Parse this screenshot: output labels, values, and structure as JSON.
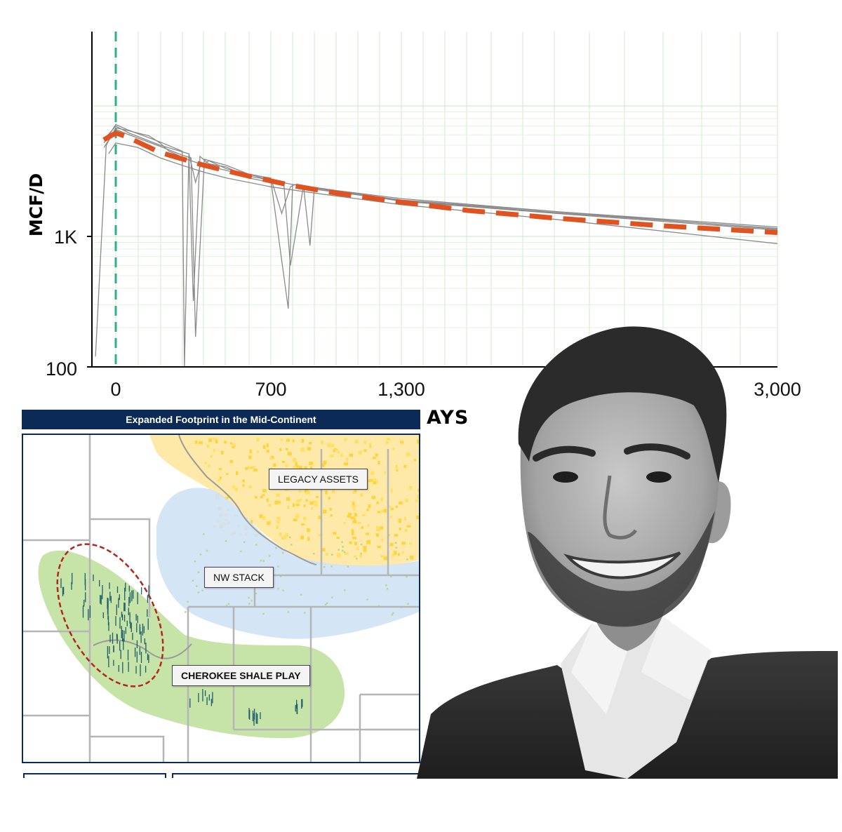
{
  "chart_data": {
    "type": "line",
    "ylabel": "MCF/D",
    "xlabel_visible_fragment": "AYS",
    "y_scale": "log",
    "y_ticks": [
      "100",
      "1K"
    ],
    "x_ticks": [
      "0",
      "700",
      "1,300",
      "3,000"
    ],
    "xlim": [
      -100,
      3000
    ],
    "ylim": [
      100,
      10000
    ],
    "reference_line": {
      "x": 0,
      "style": "dashed",
      "color": "#2bb08a"
    },
    "type_curve": {
      "style": "dashed",
      "color": "#e0521f",
      "x": [
        -50,
        0,
        50,
        200,
        400,
        600,
        800,
        1000,
        1300,
        1600,
        2000,
        2500,
        3000
      ],
      "y": [
        5500,
        6200,
        5800,
        4400,
        3500,
        2900,
        2450,
        2150,
        1830,
        1580,
        1380,
        1200,
        1070
      ]
    },
    "well_series": [
      {
        "x": [
          -85,
          -40,
          0,
          50,
          150,
          200,
          240,
          280,
          320,
          360,
          400,
          500,
          600,
          700,
          800,
          900,
          1000,
          1300,
          2000,
          3000
        ],
        "y": [
          120,
          5000,
          6800,
          6500,
          5900,
          5200,
          4500,
          4200,
          3900,
          3700,
          3500,
          3200,
          2900,
          2700,
          2500,
          2380,
          2250,
          1950,
          1550,
          1140
        ]
      },
      {
        "x": [
          -50,
          0,
          50,
          200,
          300,
          310,
          330,
          360,
          380,
          420,
          500,
          600,
          700,
          750,
          790,
          810,
          850,
          900,
          1300,
          2000,
          3000
        ],
        "y": [
          5200,
          7200,
          6600,
          5300,
          4500,
          100,
          4300,
          2600,
          3400,
          3800,
          3300,
          3000,
          2800,
          1500,
          2400,
          2500,
          2450,
          2350,
          1900,
          1550,
          1180
        ]
      },
      {
        "x": [
          -50,
          0,
          50,
          200,
          300,
          340,
          360,
          400,
          500,
          600,
          700,
          780,
          800,
          830,
          860,
          900,
          1300,
          2000,
          3000
        ],
        "y": [
          4800,
          6600,
          6100,
          4900,
          4200,
          4000,
          170,
          3900,
          3500,
          3000,
          2700,
          280,
          2500,
          2450,
          2400,
          2300,
          1880,
          1520,
          1150
        ]
      },
      {
        "x": [
          -40,
          0,
          60,
          200,
          330,
          350,
          380,
          420,
          500,
          600,
          700,
          760,
          790,
          850,
          880,
          900,
          1300,
          2000,
          3000
        ],
        "y": [
          5800,
          7000,
          6200,
          5000,
          4300,
          320,
          4100,
          3600,
          3400,
          2800,
          2600,
          2500,
          600,
          2450,
          850,
          2350,
          1860,
          1500,
          1120
        ]
      },
      {
        "x": [
          -30,
          0,
          100,
          200,
          300,
          400,
          500,
          700,
          900,
          1300,
          2000,
          3000
        ],
        "y": [
          4300,
          5200,
          4800,
          4000,
          3500,
          3100,
          2800,
          2400,
          2150,
          1750,
          1350,
          880
        ]
      }
    ]
  },
  "map": {
    "title": "Expanded Footprint in the Mid-Continent",
    "labels": {
      "legacy": "LEGACY ASSETS",
      "nwstack": "NW STACK",
      "cherokee": "CHEROKEE SHALE PLAY"
    },
    "colors": {
      "legacy": "#ffe9a8",
      "nwstack": "#cfe2f5",
      "cherokee": "#c6e3a8",
      "focus_ring": "#b3261e",
      "wells": "#1f5d6b",
      "title_bar": "#0c2a56"
    }
  }
}
